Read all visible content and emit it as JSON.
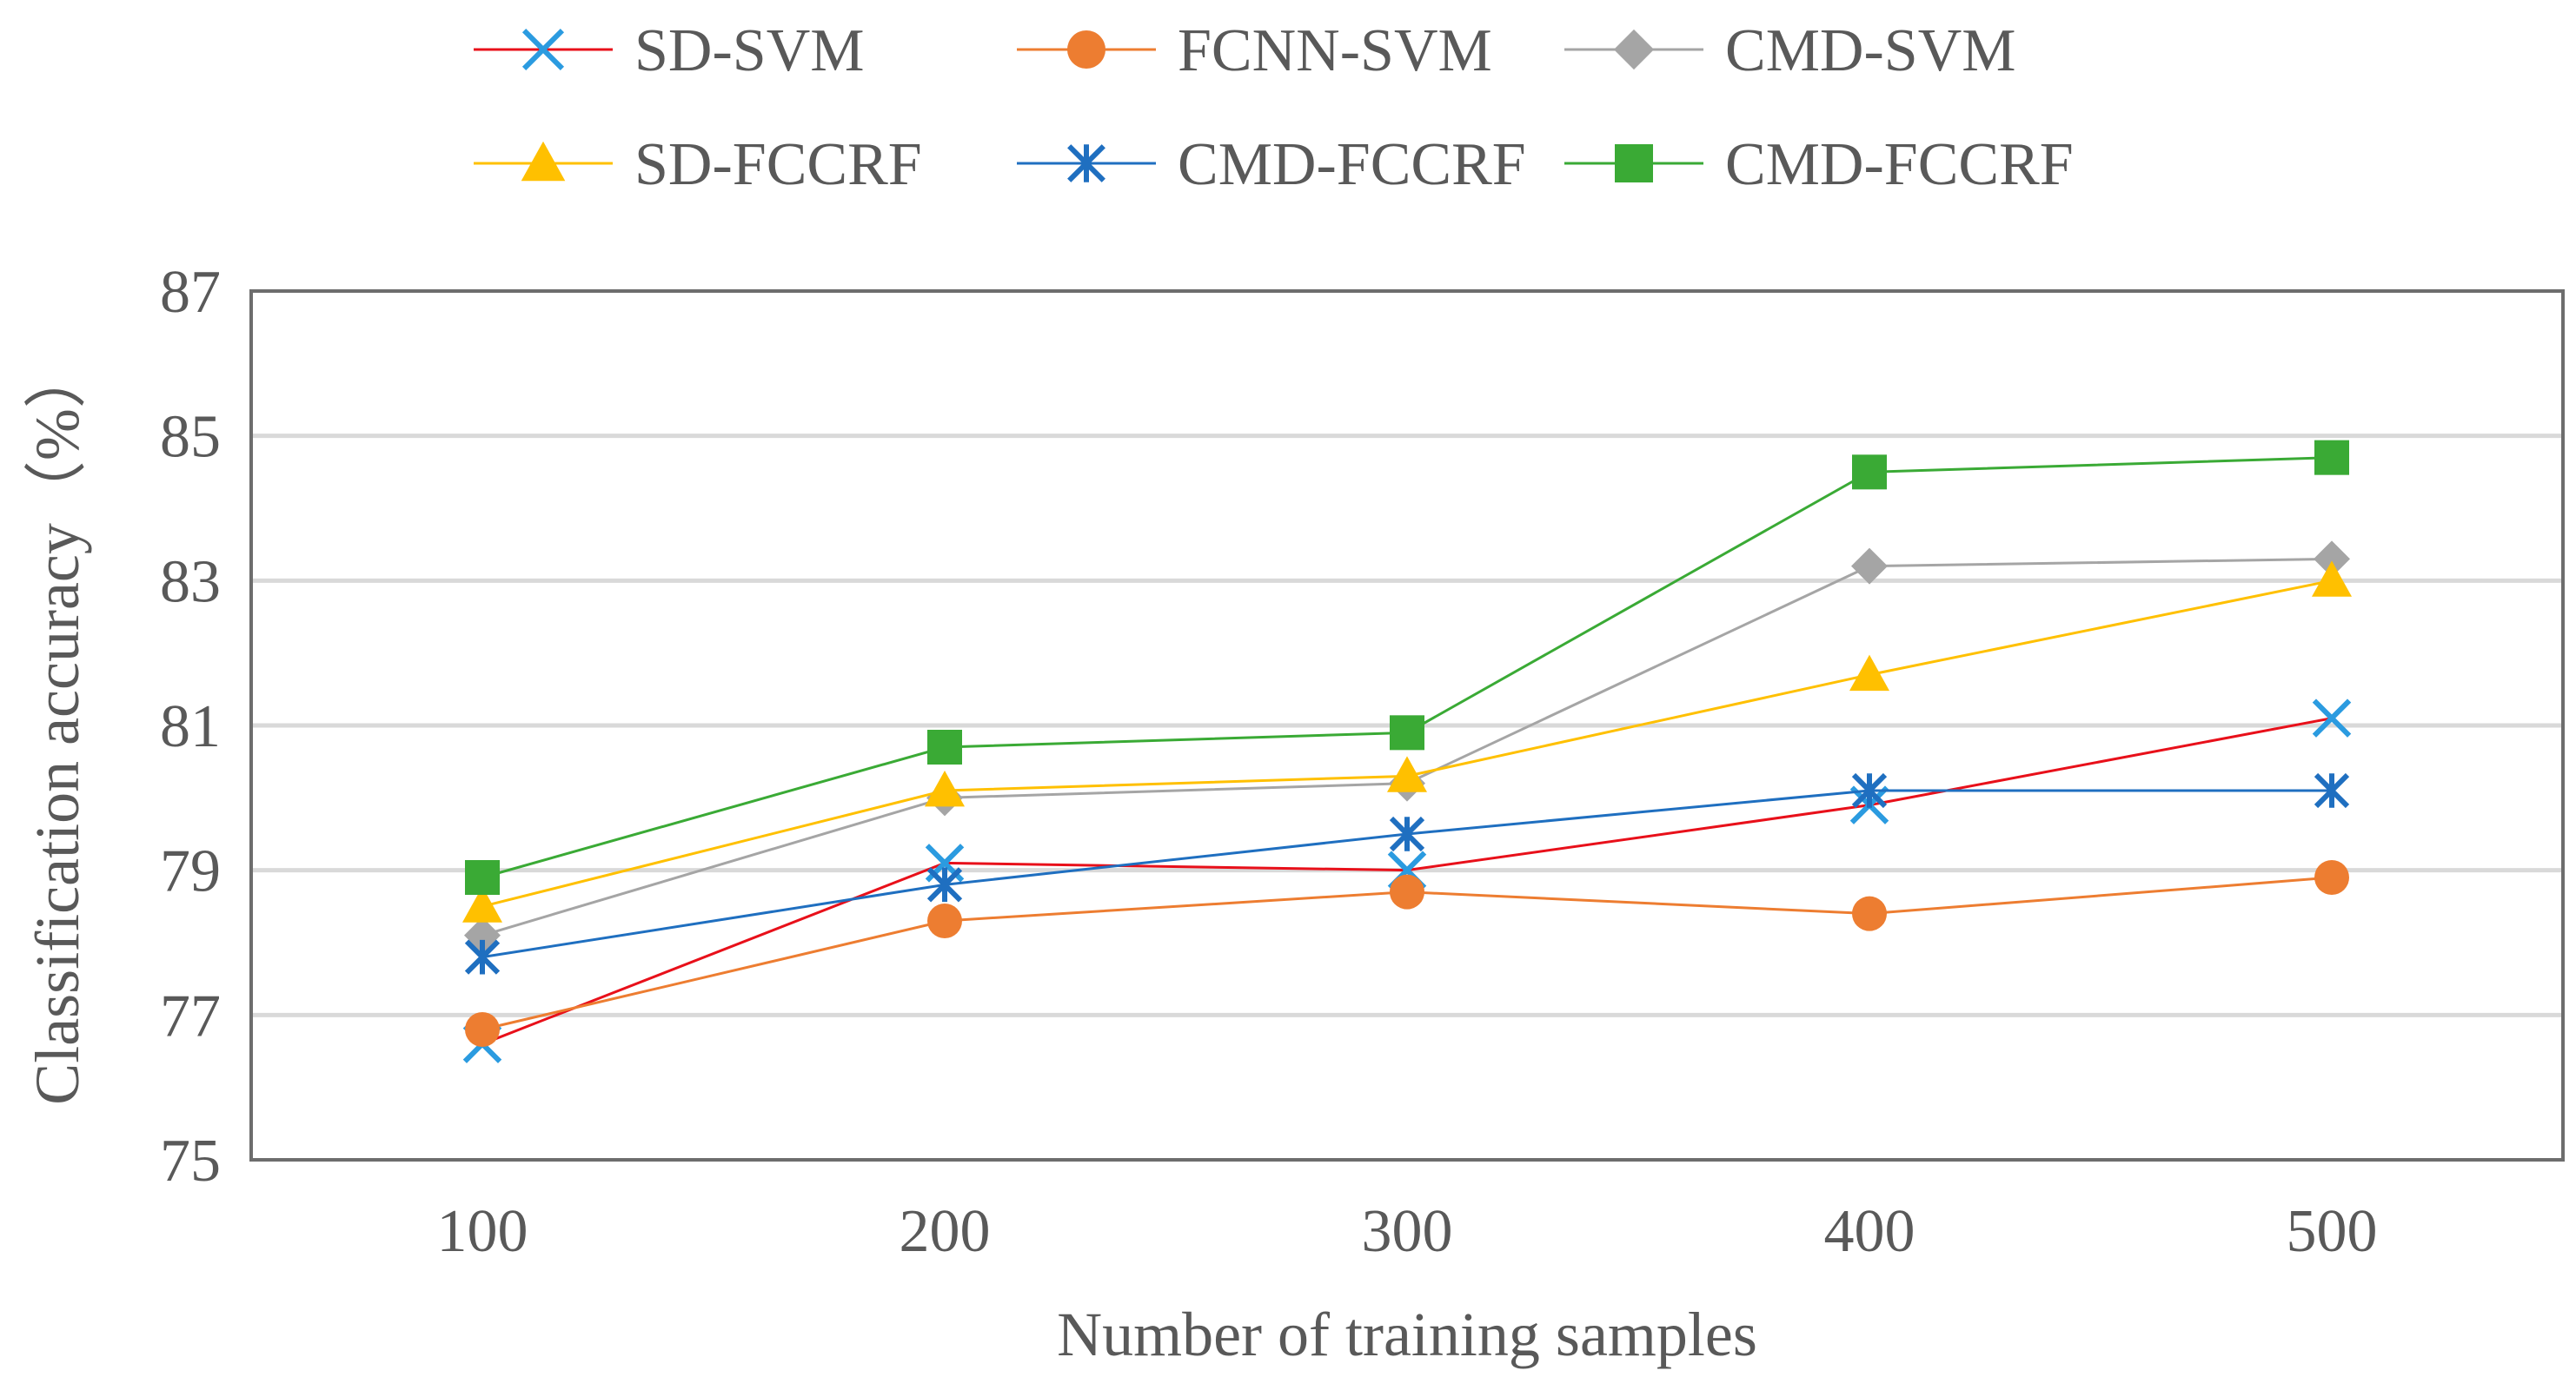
{
  "chart_data": {
    "type": "line",
    "title": "",
    "xlabel": "Number of training samples",
    "ylabel": "Classification accuracy（%）",
    "categories": [
      "100",
      "200",
      "300",
      "400",
      "500"
    ],
    "ylim": [
      75,
      87
    ],
    "yticks": [
      75,
      77,
      79,
      81,
      83,
      85,
      87
    ],
    "grid": true,
    "legend_position": "top",
    "series": [
      {
        "name": "SD-SVM",
        "values": [
          76.6,
          79.1,
          79.0,
          79.9,
          81.1
        ],
        "line_color": "#e8101a",
        "marker_color": "#2b9be0",
        "marker": "x"
      },
      {
        "name": "FCNN-SVM",
        "values": [
          76.8,
          78.3,
          78.7,
          78.4,
          78.9
        ],
        "line_color": "#ed7d31",
        "marker_color": "#ed7d31",
        "marker": "circle"
      },
      {
        "name": "CMD-SVM",
        "values": [
          78.1,
          80.0,
          80.2,
          83.2,
          83.3
        ],
        "line_color": "#a5a5a5",
        "marker_color": "#a5a5a5",
        "marker": "diamond"
      },
      {
        "name": "SD-FCCRF",
        "values": [
          78.5,
          80.1,
          80.3,
          81.7,
          83.0
        ],
        "line_color": "#ffc000",
        "marker_color": "#ffc000",
        "marker": "triangle"
      },
      {
        "name": "CMD-FCCRF",
        "values": [
          77.8,
          78.8,
          79.5,
          80.1,
          80.1
        ],
        "line_color": "#1f6fc0",
        "marker_color": "#1f6fc0",
        "marker": "asterisk"
      },
      {
        "name": "CMD-FCCRF",
        "values": [
          78.9,
          80.7,
          80.9,
          84.5,
          84.7
        ],
        "line_color": "#3aaa35",
        "marker_color": "#3aaa35",
        "marker": "square"
      }
    ]
  }
}
